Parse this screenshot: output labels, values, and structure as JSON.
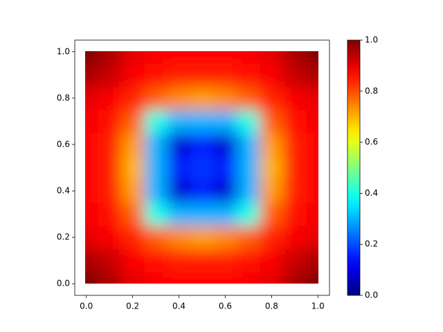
{
  "chart_data": {
    "type": "heatmap",
    "colormap": "jet",
    "x": [
      0,
      0.1,
      0.2,
      0.3,
      0.4,
      0.5,
      0.6,
      0.7,
      0.8,
      0.9,
      1
    ],
    "y": [
      0,
      0.1,
      0.2,
      0.3,
      0.4,
      0.5,
      0.6,
      0.7,
      0.8,
      0.9,
      1
    ],
    "values": [
      [
        1.0,
        0.96,
        0.9,
        0.88,
        0.87,
        0.87,
        0.87,
        0.88,
        0.9,
        0.96,
        1.0
      ],
      [
        0.96,
        0.93,
        0.88,
        0.86,
        0.85,
        0.85,
        0.85,
        0.86,
        0.88,
        0.93,
        0.96
      ],
      [
        0.9,
        0.88,
        0.84,
        0.78,
        0.74,
        0.72,
        0.74,
        0.78,
        0.84,
        0.88,
        0.9
      ],
      [
        0.88,
        0.86,
        0.78,
        0.4,
        0.3,
        0.3,
        0.3,
        0.4,
        0.78,
        0.86,
        0.88
      ],
      [
        0.87,
        0.85,
        0.72,
        0.3,
        0.08,
        0.15,
        0.08,
        0.3,
        0.72,
        0.85,
        0.87
      ],
      [
        0.87,
        0.85,
        0.7,
        0.3,
        0.15,
        0.18,
        0.15,
        0.3,
        0.7,
        0.85,
        0.87
      ],
      [
        0.87,
        0.85,
        0.72,
        0.3,
        0.08,
        0.15,
        0.08,
        0.3,
        0.72,
        0.85,
        0.87
      ],
      [
        0.88,
        0.86,
        0.78,
        0.4,
        0.3,
        0.3,
        0.3,
        0.4,
        0.78,
        0.86,
        0.88
      ],
      [
        0.9,
        0.88,
        0.84,
        0.78,
        0.74,
        0.72,
        0.74,
        0.78,
        0.84,
        0.88,
        0.9
      ],
      [
        0.96,
        0.93,
        0.88,
        0.86,
        0.85,
        0.85,
        0.85,
        0.86,
        0.88,
        0.93,
        0.96
      ],
      [
        1.0,
        0.96,
        0.9,
        0.88,
        0.87,
        0.87,
        0.87,
        0.88,
        0.9,
        0.96,
        1.0
      ]
    ],
    "xlim": [
      -0.05,
      1.05
    ],
    "ylim": [
      -0.05,
      1.05
    ],
    "xticks": [
      {
        "value": 0,
        "label": "0.0"
      },
      0.2,
      0.4,
      0.6,
      0.8,
      {
        "value": 1,
        "label": "1.0"
      }
    ],
    "yticks": [
      {
        "value": 0,
        "label": "0.0"
      },
      0.2,
      0.4,
      0.6,
      0.8,
      {
        "value": 1,
        "label": "1.0"
      }
    ],
    "clim": [
      0,
      1
    ],
    "cticks": [
      {
        "value": 0,
        "label": "0.0"
      },
      0.2,
      0.4,
      0.6,
      0.8,
      {
        "value": 1,
        "label": "1.0"
      }
    ]
  }
}
